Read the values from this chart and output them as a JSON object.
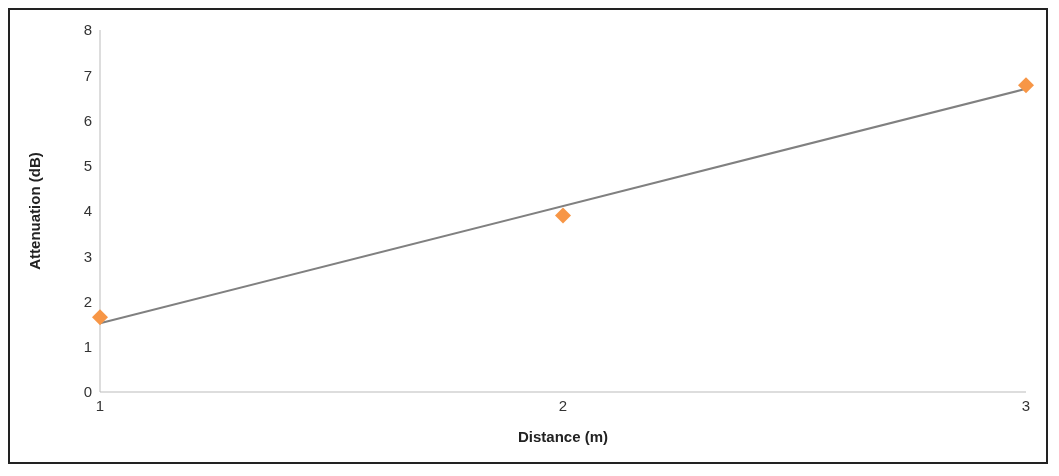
{
  "chart_data": {
    "type": "scatter",
    "xlabel": "Distance (m)",
    "ylabel": "Attenuation (dB)",
    "series": [
      {
        "color": "#f79646",
        "marker": "diamond",
        "x": [
          1,
          2,
          3
        ],
        "values": [
          1.65,
          3.9,
          6.78
        ]
      },
      {
        "type": "line",
        "color": "#808080",
        "marker": "none",
        "x": [
          1,
          3
        ],
        "values": [
          1.52,
          6.7
        ]
      }
    ],
    "xlim": [
      1,
      3
    ],
    "xticks": [
      1,
      2,
      3
    ],
    "ylim": [
      0,
      8
    ],
    "yticks": [
      0,
      1,
      2,
      3,
      4,
      5,
      6,
      7,
      8
    ],
    "grid": false,
    "legend": false
  }
}
